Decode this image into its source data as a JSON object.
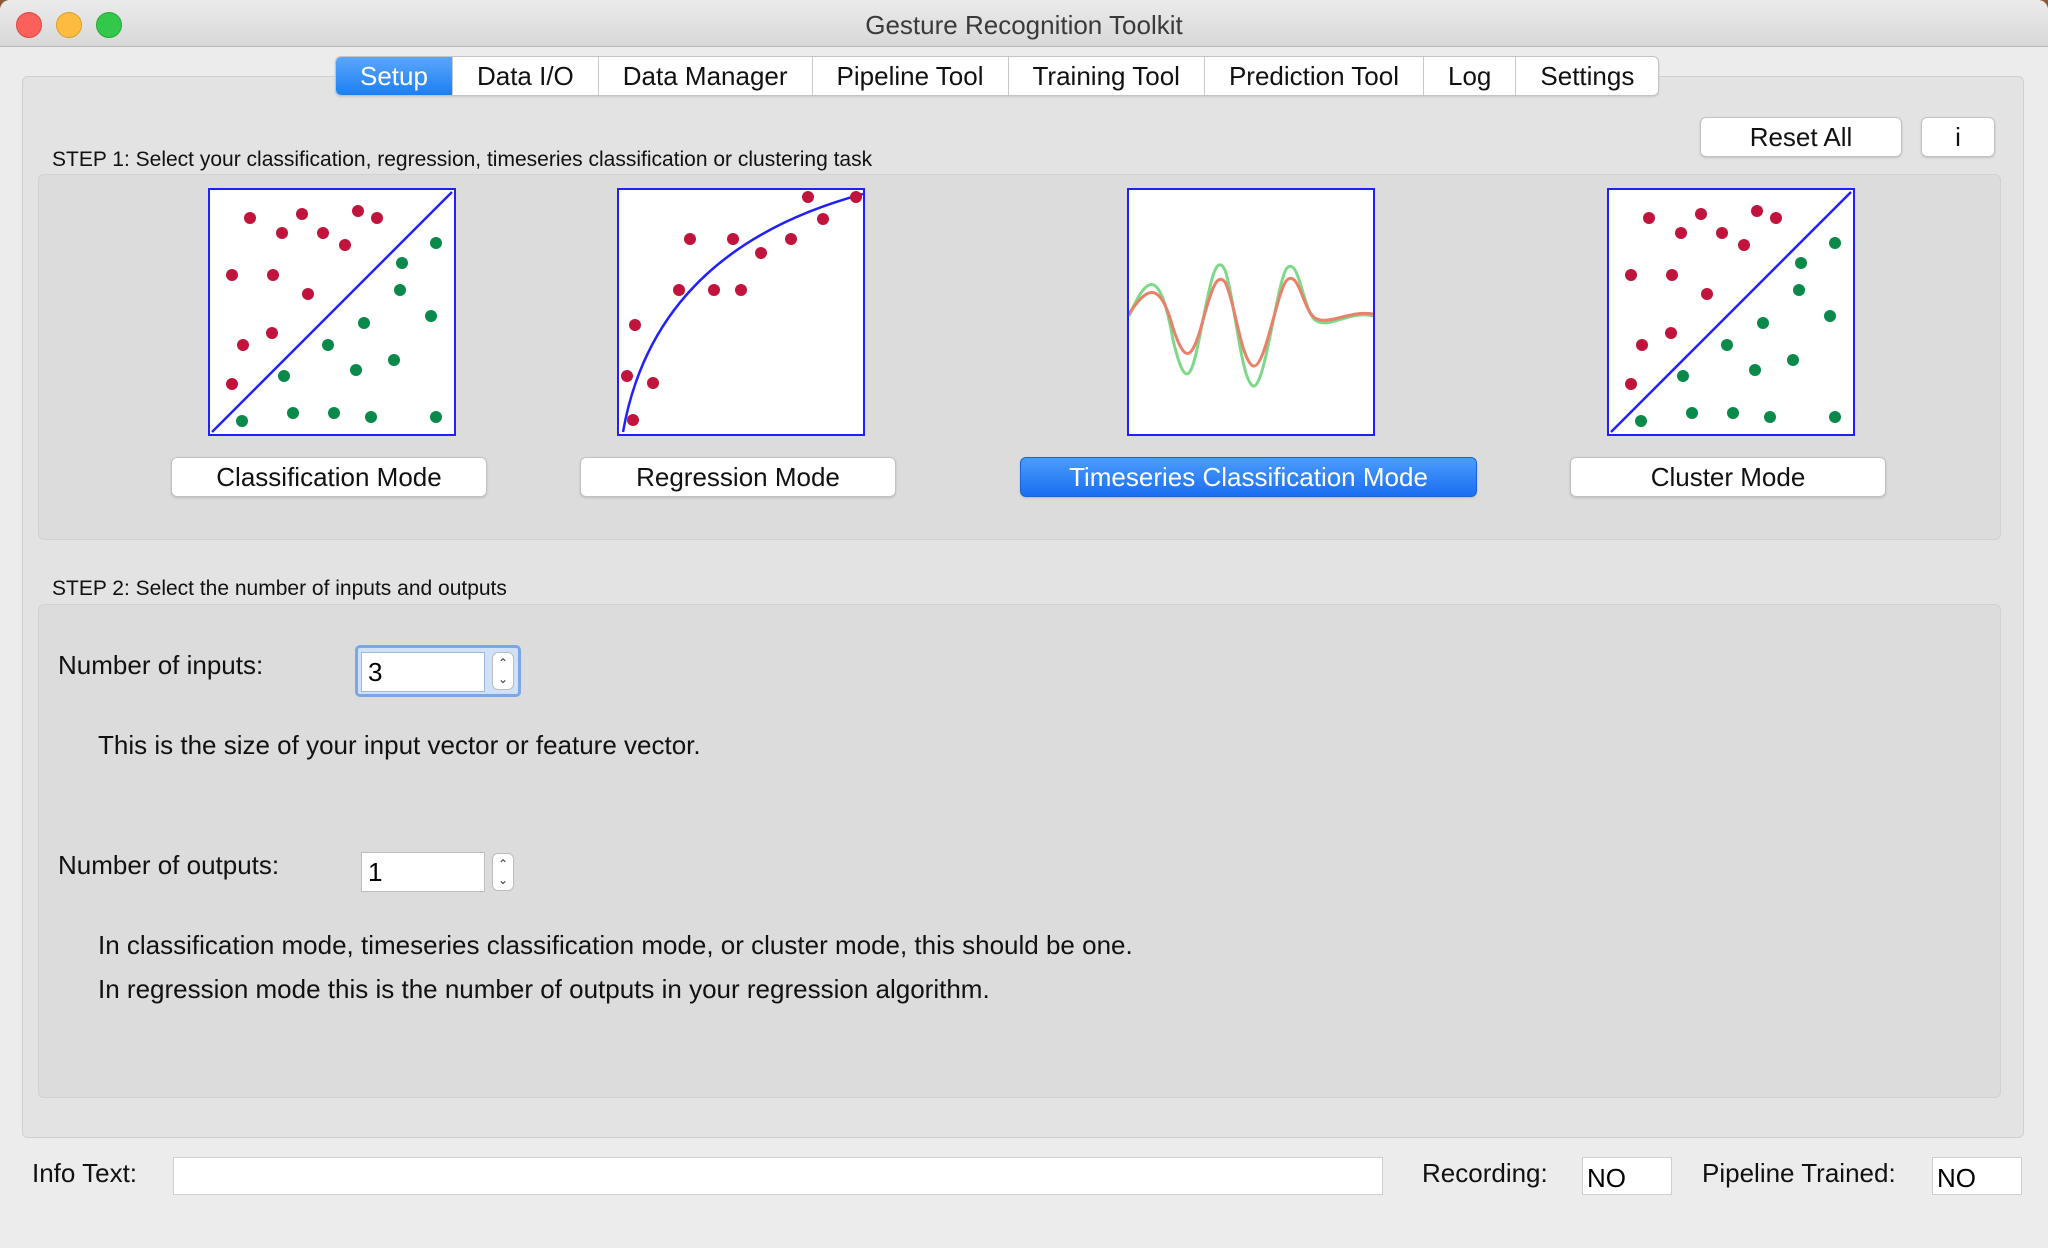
{
  "window": {
    "title": "Gesture Recognition Toolkit"
  },
  "tabs": [
    {
      "label": "Setup",
      "active": true
    },
    {
      "label": "Data I/O"
    },
    {
      "label": "Data Manager"
    },
    {
      "label": "Pipeline Tool"
    },
    {
      "label": "Training Tool"
    },
    {
      "label": "Prediction Tool"
    },
    {
      "label": "Log"
    },
    {
      "label": "Settings"
    }
  ],
  "header_buttons": {
    "reset_all": "Reset All",
    "info": "i"
  },
  "step1": {
    "label": "STEP 1: Select your classification, regression, timeseries classification or clustering task",
    "modes": [
      {
        "label": "Classification Mode",
        "icon": "classification-plot-icon",
        "selected": false
      },
      {
        "label": "Regression Mode",
        "icon": "regression-plot-icon",
        "selected": false
      },
      {
        "label": "Timeseries Classification Mode",
        "icon": "timeseries-plot-icon",
        "selected": true
      },
      {
        "label": "Cluster Mode",
        "icon": "cluster-plot-icon",
        "selected": false
      }
    ]
  },
  "step2": {
    "label": "STEP 2: Select the number of inputs and outputs",
    "inputs": {
      "label": "Number of inputs:",
      "value": "3",
      "help": "This is the size of your input vector or feature vector."
    },
    "outputs": {
      "label": "Number of outputs:",
      "value": "1",
      "help_line1": "In classification mode, timeseries classification mode, or cluster mode, this should be one.",
      "help_line2": "In regression mode this is the number of outputs in your regression algorithm."
    }
  },
  "status_bar": {
    "info_label": "Info Text:",
    "info_value": "",
    "recording_label": "Recording:",
    "recording_value": "NO",
    "trained_label": "Pipeline Trained:",
    "trained_value": "NO"
  },
  "colors": {
    "accent": "#1c7ff4",
    "plot_border": "#2020ff",
    "class_red": "#c0143c",
    "class_green": "#0a8a4a",
    "series_red": "#e8806a",
    "series_green": "#7fd88a"
  }
}
